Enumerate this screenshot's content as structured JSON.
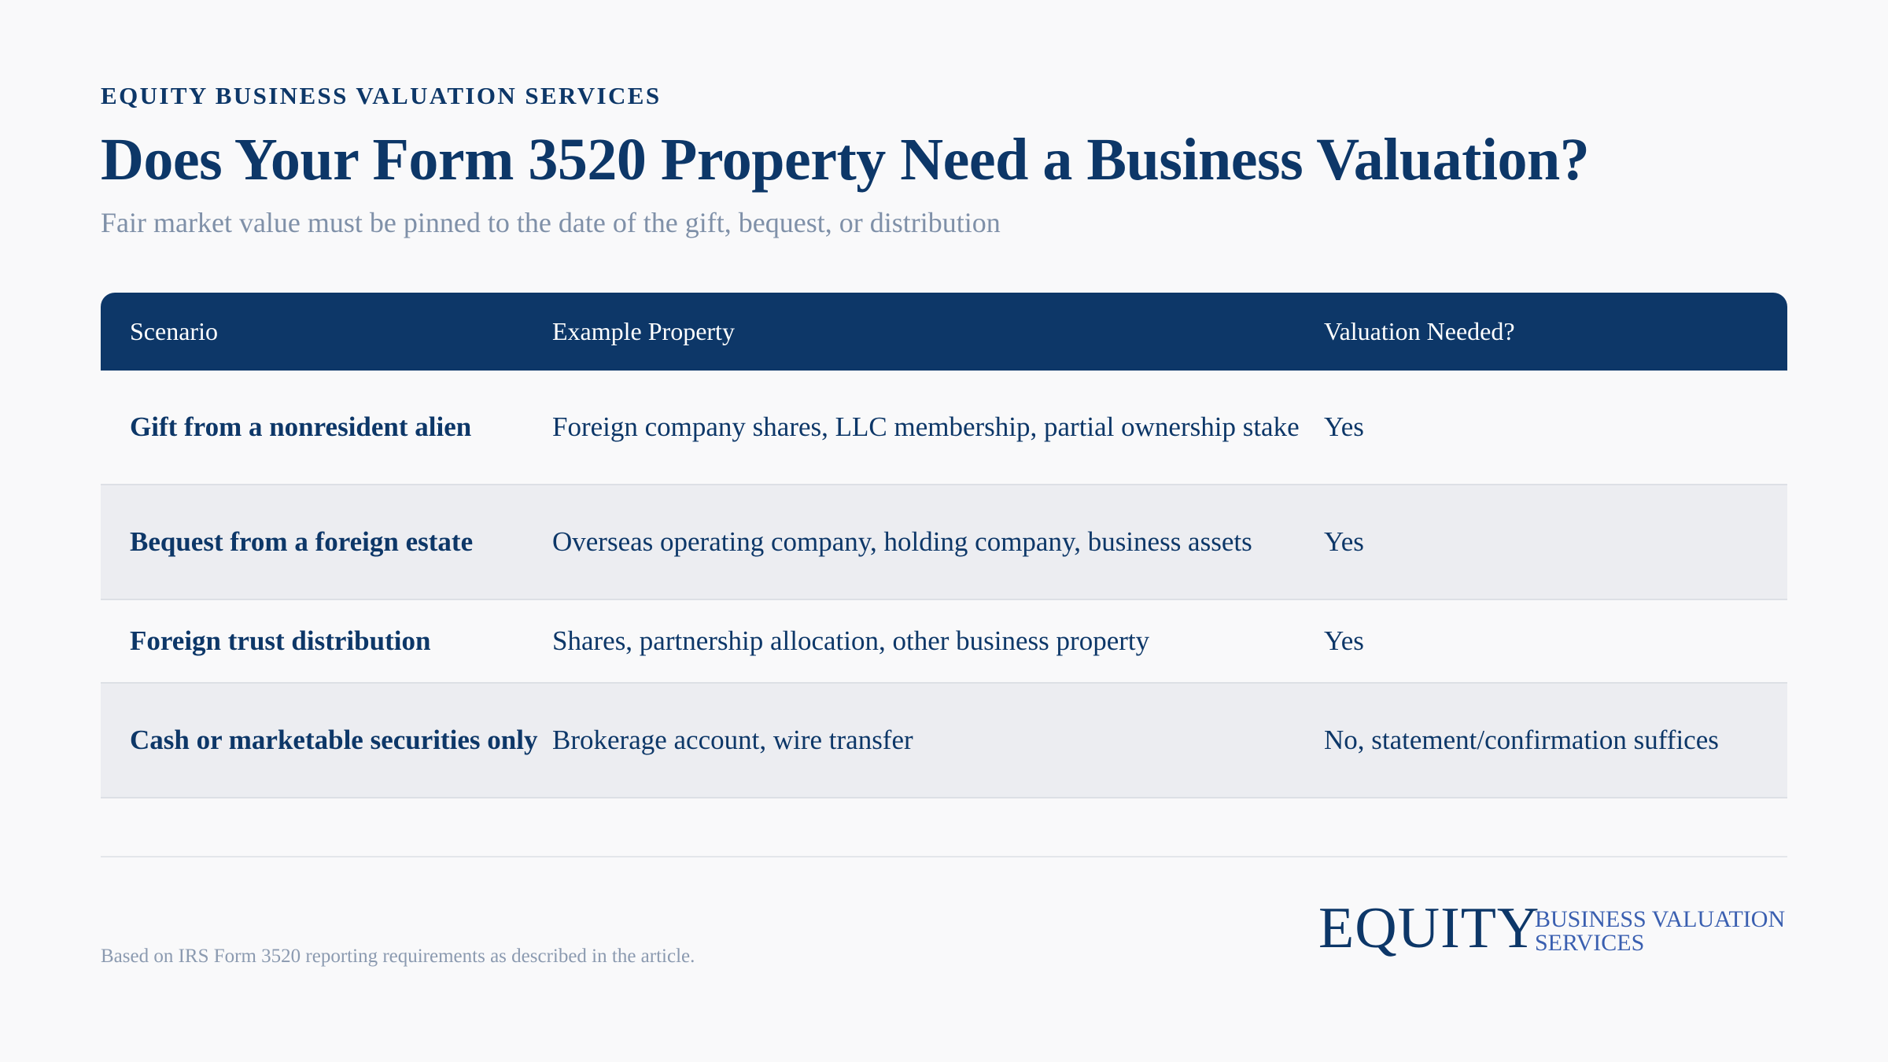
{
  "header": {
    "eyebrow": "EQUITY BUSINESS VALUATION SERVICES",
    "title": "Does Your Form 3520 Property Need a Business Valuation?",
    "subtitle": "Fair market value must be pinned to the date of the gift, bequest, or distribution"
  },
  "table": {
    "columns": [
      "Scenario",
      "Example Property",
      "Valuation Needed?"
    ],
    "rows": [
      {
        "scenario": "Gift from a nonresident alien",
        "example": "Foreign company shares, LLC membership, partial ownership stake",
        "valuation": "Yes"
      },
      {
        "scenario": "Bequest from a foreign estate",
        "example": "Overseas operating company, holding company, business assets",
        "valuation": "Yes"
      },
      {
        "scenario": "Foreign trust distribution",
        "example": "Shares, partnership allocation, other business property",
        "valuation": "Yes"
      },
      {
        "scenario": "Cash or marketable securities only",
        "example": "Brokerage account, wire transfer",
        "valuation": "No, statement/confirmation suffices"
      }
    ]
  },
  "footer": {
    "note": "Based on IRS Form 3520 reporting requirements as described in the article.",
    "logo_word": "EQUITY",
    "logo_tag_line1": "BUSINESS VALUATION",
    "logo_tag_line2": "SERVICES"
  },
  "colors": {
    "navy": "#0d3768",
    "accent_blue": "#3a5fb0",
    "muted_text": "#7f90a8",
    "alt_row": "#ecedf1",
    "background": "#f9f9fa"
  }
}
